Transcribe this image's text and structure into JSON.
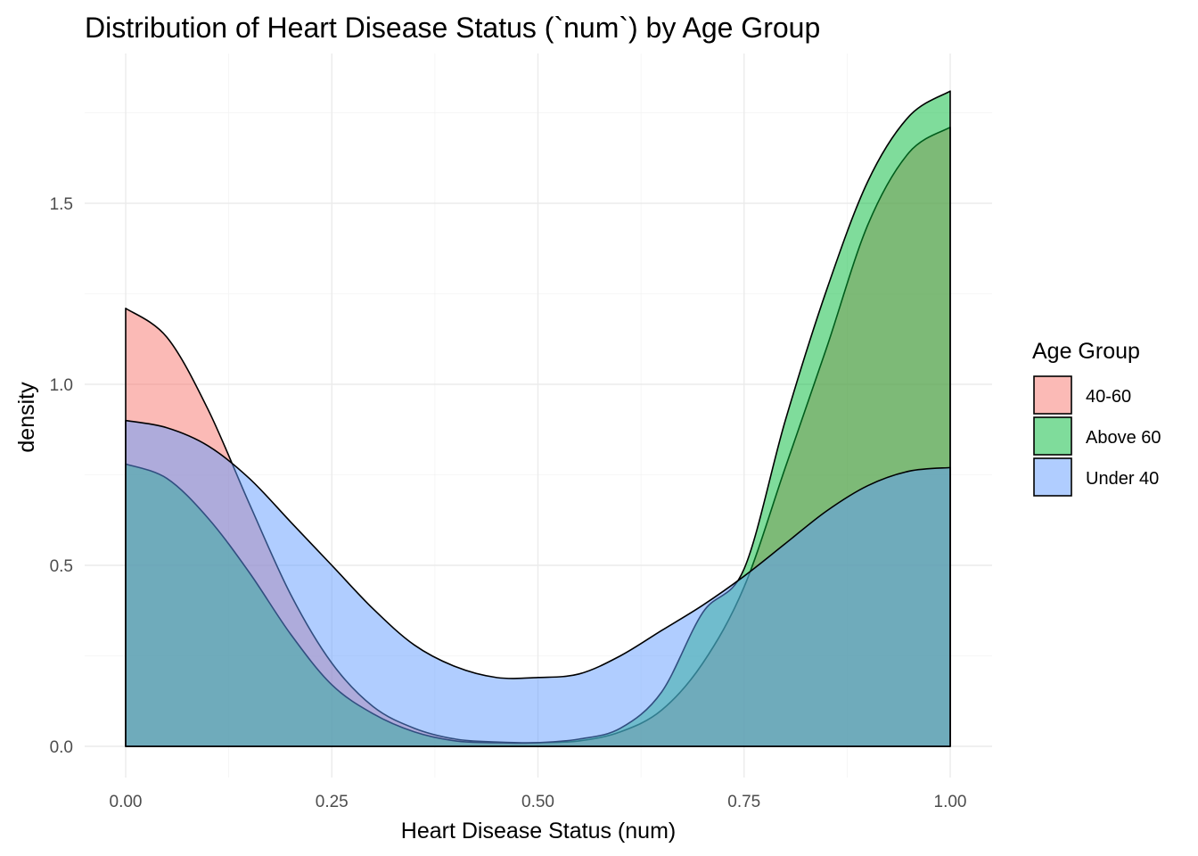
{
  "chart_data": {
    "type": "area",
    "title": "Distribution of Heart Disease Status (`num`) by Age Group",
    "xlabel": "Heart Disease Status (num)",
    "ylabel": "density",
    "xlim": [
      0,
      1
    ],
    "ylim": [
      0,
      1.8
    ],
    "x_ticks": [
      "0.00",
      "0.25",
      "0.50",
      "0.75",
      "1.00"
    ],
    "y_ticks": [
      "0.0",
      "0.5",
      "1.0",
      "1.5"
    ],
    "grid": true,
    "legend": {
      "title": "Age Group",
      "position": "right"
    },
    "x": [
      0.0,
      0.05,
      0.1,
      0.15,
      0.2,
      0.25,
      0.3,
      0.35,
      0.4,
      0.45,
      0.5,
      0.55,
      0.6,
      0.65,
      0.7,
      0.75,
      0.8,
      0.85,
      0.9,
      0.95,
      1.0
    ],
    "series": [
      {
        "name": "40-60",
        "color": "#F8766D",
        "values": [
          1.21,
          1.13,
          0.93,
          0.67,
          0.42,
          0.23,
          0.11,
          0.05,
          0.02,
          0.012,
          0.01,
          0.015,
          0.04,
          0.1,
          0.23,
          0.44,
          0.77,
          1.1,
          1.44,
          1.64,
          1.71
        ]
      },
      {
        "name": "Above 60",
        "color": "#00BA38",
        "values": [
          0.78,
          0.74,
          0.63,
          0.48,
          0.31,
          0.17,
          0.09,
          0.04,
          0.015,
          0.01,
          0.01,
          0.02,
          0.05,
          0.15,
          0.37,
          0.49,
          0.9,
          1.26,
          1.56,
          1.74,
          1.81
        ]
      },
      {
        "name": "Under 40",
        "color": "#619CFF",
        "values": [
          0.9,
          0.88,
          0.83,
          0.74,
          0.62,
          0.5,
          0.38,
          0.28,
          0.22,
          0.19,
          0.19,
          0.2,
          0.25,
          0.32,
          0.39,
          0.47,
          0.56,
          0.65,
          0.72,
          0.76,
          0.77
        ]
      }
    ]
  }
}
